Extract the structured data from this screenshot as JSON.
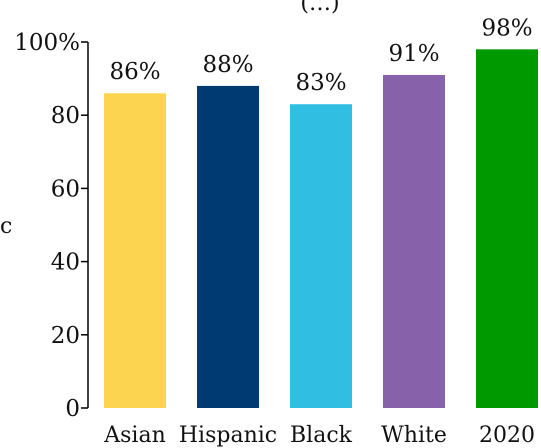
{
  "chart_data": {
    "type": "bar",
    "categories": [
      "Asian",
      "Hispanic",
      "Black",
      "White",
      "2020"
    ],
    "values": [
      86,
      88,
      83,
      91,
      98
    ],
    "data_labels": [
      "86%",
      "88%",
      "83%",
      "91%",
      "98%"
    ],
    "colors": [
      "#fcd450",
      "#003a72",
      "#31bee3",
      "#8761a9",
      "#009a00"
    ],
    "ylim": [
      0,
      100
    ],
    "yticks": [
      0,
      20,
      40,
      60,
      80,
      100
    ],
    "ytick_labels": [
      "0",
      "20",
      "40",
      "60",
      "80",
      "100%"
    ],
    "title": "",
    "xlabel": "",
    "ylabel": "",
    "grid": false,
    "legend": "none"
  },
  "cropped_text": {
    "top_fragment": "(…)",
    "left_fragment": "c"
  }
}
